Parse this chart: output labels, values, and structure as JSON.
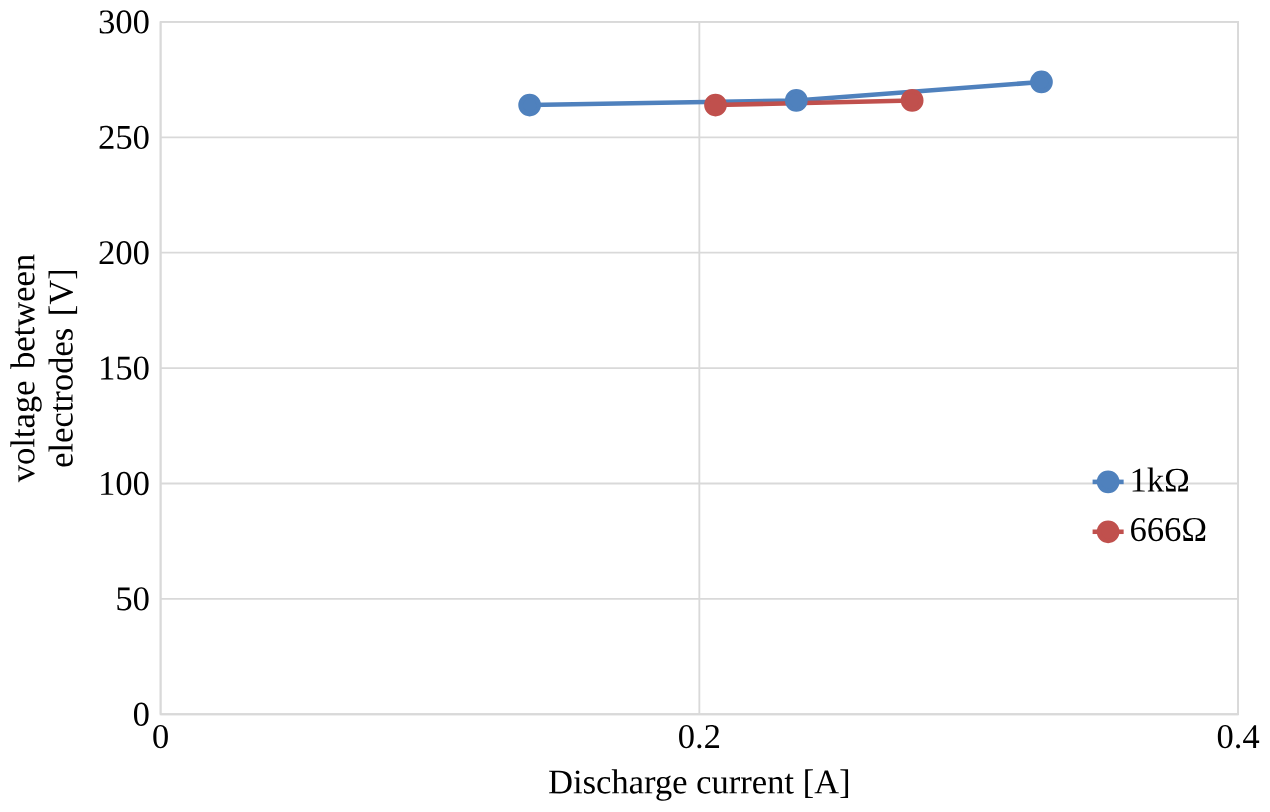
{
  "chart_data": {
    "type": "line",
    "xlabel": "Discharge current [A]",
    "ylabel": "voltage between electrodes [V]",
    "series": [
      {
        "name": "1kΩ",
        "color": "#4f81bd",
        "x": [
          0.137,
          0.236,
          0.327
        ],
        "values": [
          264,
          266,
          274
        ]
      },
      {
        "name": "666Ω",
        "color": "#c0504d",
        "x": [
          0.206,
          0.279
        ],
        "values": [
          264,
          266
        ]
      }
    ],
    "xlim": [
      0,
      0.4
    ],
    "xticks": [
      0,
      0.2,
      0.4
    ],
    "ylim": [
      0,
      300
    ],
    "yticks": [
      0,
      50,
      100,
      150,
      200,
      250,
      300
    ],
    "grid": true,
    "legend": "right",
    "marker": "circle",
    "line_style": "solid"
  }
}
